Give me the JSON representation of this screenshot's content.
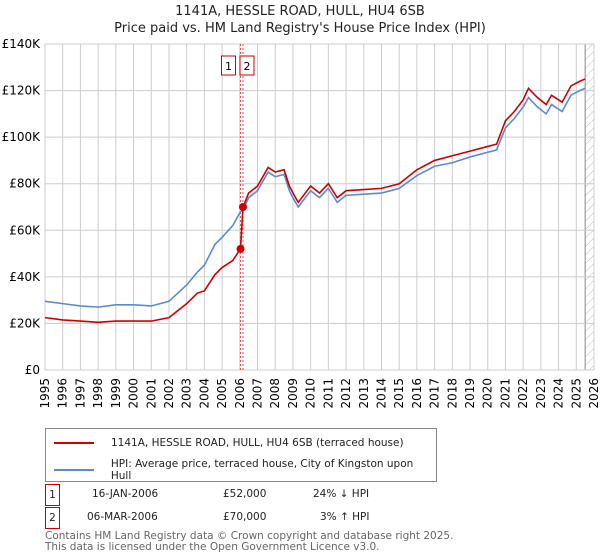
{
  "chart_data": {
    "type": "line",
    "title": "1141A, HESSLE ROAD, HULL, HU4 6SB",
    "subtitle": "Price paid vs. HM Land Registry's House Price Index (HPI)",
    "xlim": [
      1995,
      2026
    ],
    "ylim": [
      0,
      140000
    ],
    "yticks": [
      0,
      20000,
      40000,
      60000,
      80000,
      100000,
      120000,
      140000
    ],
    "ytick_labels": [
      "£0",
      "£20K",
      "£40K",
      "£60K",
      "£80K",
      "£100K",
      "£120K",
      "£140K"
    ],
    "xticks": [
      1995,
      1996,
      1997,
      1998,
      1999,
      2000,
      2001,
      2002,
      2003,
      2004,
      2005,
      2006,
      2007,
      2008,
      2009,
      2010,
      2011,
      2012,
      2013,
      2014,
      2015,
      2016,
      2017,
      2018,
      2019,
      2020,
      2021,
      2022,
      2023,
      2024,
      2025,
      2026
    ],
    "grid": true,
    "series": [
      {
        "name": "1141A, HESSLE ROAD, HULL, HU4 6SB (terraced house)",
        "color": "#cc0000",
        "x": [
          1995,
          1996,
          1997,
          1998,
          1999,
          2000,
          2001,
          2002,
          2003,
          2003.6,
          2004,
          2004.6,
          2005,
          2005.6,
          2006.04,
          2006.18,
          2006.5,
          2007,
          2007.6,
          2008,
          2008.5,
          2008.8,
          2009,
          2009.3,
          2010,
          2010.5,
          2011,
          2011.5,
          2012,
          2013,
          2014,
          2015,
          2016,
          2017,
          2018,
          2019,
          2020,
          2020.5,
          2021,
          2021.5,
          2022,
          2022.3,
          2022.8,
          2023.3,
          2023.6,
          2024.2,
          2024.7,
          2025.2,
          2025.5
        ],
        "y": [
          22500,
          21500,
          21000,
          20500,
          21000,
          21000,
          21000,
          22500,
          28500,
          33000,
          34000,
          41000,
          44000,
          47000,
          52000,
          70000,
          76000,
          79000,
          87000,
          85000,
          86000,
          79000,
          76000,
          72000,
          79000,
          76000,
          80000,
          74000,
          77000,
          77500,
          78000,
          80000,
          86000,
          90000,
          92000,
          94000,
          96000,
          97000,
          107000,
          111000,
          116000,
          121000,
          117000,
          114000,
          118000,
          115000,
          122000,
          124000,
          125000
        ]
      },
      {
        "name": "HPI: Average price, terraced house, City of Kingston upon Hull",
        "color": "#5b8ad0",
        "x": [
          1995,
          1996,
          1997,
          1998,
          1999,
          2000,
          2001,
          2002,
          2003,
          2003.6,
          2004,
          2004.6,
          2005,
          2005.6,
          2006.04,
          2006.18,
          2006.5,
          2007,
          2007.6,
          2008,
          2008.5,
          2008.8,
          2009,
          2009.3,
          2010,
          2010.5,
          2011,
          2011.5,
          2012,
          2013,
          2014,
          2015,
          2016,
          2017,
          2018,
          2019,
          2020,
          2020.5,
          2021,
          2021.5,
          2022,
          2022.3,
          2022.8,
          2023.3,
          2023.6,
          2024.2,
          2024.7,
          2025.2,
          2025.5
        ],
        "y": [
          29500,
          28500,
          27500,
          27000,
          28000,
          28000,
          27500,
          29500,
          36500,
          42000,
          45000,
          54000,
          57000,
          62000,
          68000,
          68500,
          74000,
          77000,
          85000,
          83000,
          84000,
          77000,
          74000,
          70000,
          77000,
          74000,
          78000,
          72000,
          75000,
          75500,
          76000,
          78000,
          83500,
          87500,
          89000,
          91500,
          93500,
          94500,
          104000,
          108000,
          113000,
          117000,
          113000,
          110000,
          114000,
          111000,
          118000,
          120000,
          121000
        ]
      }
    ],
    "annotations": [
      {
        "label": "1",
        "x": 2006.04,
        "y": 52000
      },
      {
        "label": "2",
        "x": 2006.18,
        "y": 70000
      }
    ],
    "hatch_from": 2025.5
  },
  "legend": {
    "items": [
      "1141A, HESSLE ROAD, HULL, HU4 6SB (terraced house)",
      "HPI: Average price, terraced house, City of Kingston upon Hull"
    ]
  },
  "transactions": [
    {
      "num": "1",
      "date": "16-JAN-2006",
      "price": "£52,000",
      "hpi": "24% ↓ HPI"
    },
    {
      "num": "2",
      "date": "06-MAR-2006",
      "price": "£70,000",
      "hpi": "3% ↑ HPI"
    }
  ],
  "footer": [
    "Contains HM Land Registry data © Crown copyright and database right 2025.",
    "This data is licensed under the Open Government Licence v3.0."
  ]
}
